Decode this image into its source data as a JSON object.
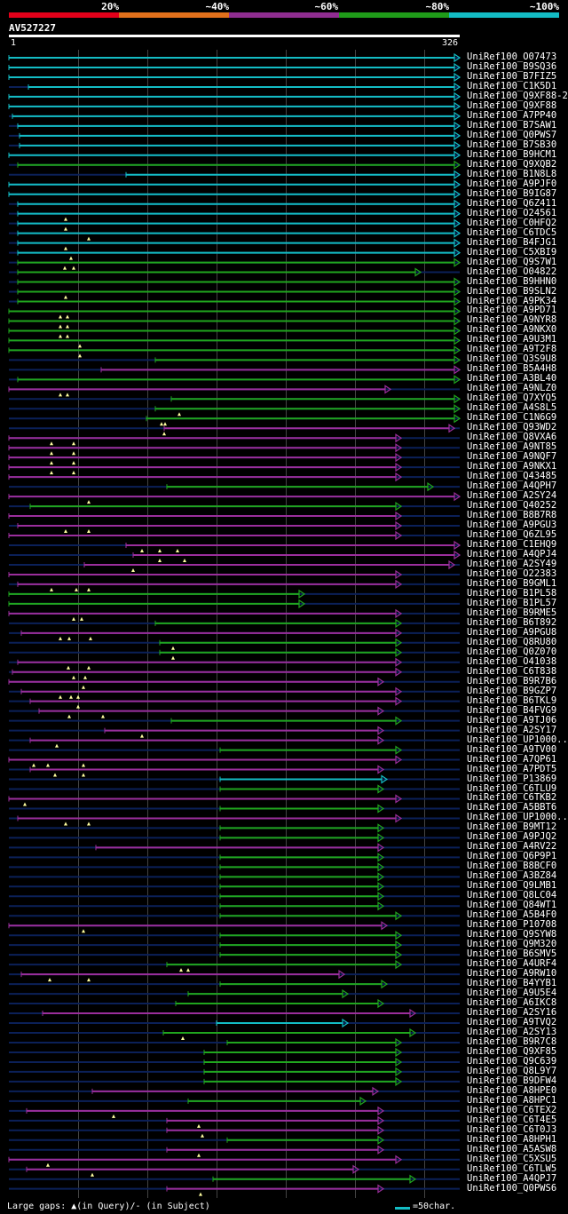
{
  "legend": [
    {
      "label": "20%",
      "color": "#e3001a"
    },
    {
      "label": "~40%",
      "color": "#e1701b"
    },
    {
      "label": "~60%",
      "color": "#8f2d90"
    },
    {
      "label": "~80%",
      "color": "#1f9b19"
    },
    {
      "label": "~100%",
      "color": "#13bcc4"
    }
  ],
  "query": {
    "id": "AV527227",
    "start": "1",
    "end": "326"
  },
  "colors": {
    "cyan": "#13bcc4",
    "green": "#20a61e",
    "magenta": "#9b2e9c",
    "dim": "#0b2058"
  },
  "hits": [
    {
      "id": "UniRef100_O07473",
      "c": "cyan",
      "x1": 10,
      "x2": 518,
      "g": []
    },
    {
      "id": "UniRef100_B9SQ36",
      "c": "cyan",
      "x1": 10,
      "x2": 518,
      "g": []
    },
    {
      "id": "UniRef100_B7FIZ5",
      "c": "cyan",
      "x1": 10,
      "x2": 518,
      "g": []
    },
    {
      "id": "UniRef100_C1K5D1",
      "c": "cyan",
      "x1": 32,
      "x2": 518,
      "g": []
    },
    {
      "id": "UniRef100_Q9XF88-2",
      "c": "cyan",
      "x1": 10,
      "x2": 518,
      "g": []
    },
    {
      "id": "UniRef100_Q9XF88",
      "c": "cyan",
      "x1": 10,
      "x2": 518,
      "g": []
    },
    {
      "id": "UniRef100_A7PP40",
      "c": "cyan",
      "x1": 14,
      "x2": 518,
      "g": []
    },
    {
      "id": "UniRef100_B7SAW1",
      "c": "cyan",
      "x1": 20,
      "x2": 518,
      "g": []
    },
    {
      "id": "UniRef100_Q0PWS7",
      "c": "cyan",
      "x1": 22,
      "x2": 518,
      "g": []
    },
    {
      "id": "UniRef100_B7SB30",
      "c": "cyan",
      "x1": 22,
      "x2": 518,
      "g": []
    },
    {
      "id": "UniRef100_B9HCM1",
      "c": "cyan",
      "x1": 10,
      "x2": 518,
      "g": []
    },
    {
      "id": "UniRef100_Q9XQB2",
      "c": "green",
      "x1": 20,
      "x2": 518,
      "g": []
    },
    {
      "id": "UniRef100_B1N8L8",
      "c": "cyan",
      "x1": 142,
      "x2": 518,
      "g": []
    },
    {
      "id": "UniRef100_A9PJF0",
      "c": "cyan",
      "x1": 10,
      "x2": 518,
      "g": []
    },
    {
      "id": "UniRef100_B9IG87",
      "c": "cyan",
      "x1": 10,
      "x2": 518,
      "g": []
    },
    {
      "id": "UniRef100_Q6Z411",
      "c": "cyan",
      "x1": 20,
      "x2": 518,
      "g": []
    },
    {
      "id": "UniRef100_O24561",
      "c": "cyan",
      "x1": 20,
      "x2": 518,
      "g": [
        74
      ]
    },
    {
      "id": "UniRef100_C0HFQ2",
      "c": "cyan",
      "x1": 20,
      "x2": 518,
      "g": [
        74
      ]
    },
    {
      "id": "UniRef100_C6TDC5",
      "c": "cyan",
      "x1": 20,
      "x2": 518,
      "g": [
        100
      ]
    },
    {
      "id": "UniRef100_B4FJG1",
      "c": "cyan",
      "x1": 20,
      "x2": 518,
      "g": [
        74
      ]
    },
    {
      "id": "UniRef100_C5XBI9",
      "c": "cyan",
      "x1": 20,
      "x2": 518,
      "g": [
        80
      ]
    },
    {
      "id": "UniRef100_Q9S7W1",
      "c": "green",
      "x1": 20,
      "x2": 518,
      "g": [
        73,
        83
      ]
    },
    {
      "id": "UniRef100_O04822",
      "c": "green",
      "x1": 20,
      "x2": 474,
      "g": []
    },
    {
      "id": "UniRef100_B9HHN0",
      "c": "green",
      "x1": 20,
      "x2": 518,
      "g": []
    },
    {
      "id": "UniRef100_B9SLN2",
      "c": "green",
      "x1": 20,
      "x2": 518,
      "g": [
        74
      ]
    },
    {
      "id": "UniRef100_A9PK34",
      "c": "green",
      "x1": 20,
      "x2": 518,
      "g": []
    },
    {
      "id": "UniRef100_A9PD71",
      "c": "green",
      "x1": 10,
      "x2": 518,
      "g": [
        68,
        76
      ]
    },
    {
      "id": "UniRef100_A9NYR8",
      "c": "green",
      "x1": 10,
      "x2": 518,
      "g": [
        68,
        76
      ]
    },
    {
      "id": "UniRef100_A9NKX0",
      "c": "green",
      "x1": 10,
      "x2": 518,
      "g": [
        68,
        76
      ]
    },
    {
      "id": "UniRef100_A9U3M1",
      "c": "green",
      "x1": 10,
      "x2": 518,
      "g": [
        90
      ]
    },
    {
      "id": "UniRef100_A9T2F8",
      "c": "green",
      "x1": 10,
      "x2": 518,
      "g": [
        90
      ]
    },
    {
      "id": "UniRef100_Q3S9U8",
      "c": "green",
      "x1": 175,
      "x2": 518,
      "g": []
    },
    {
      "id": "UniRef100_B5A4H8",
      "c": "magenta",
      "x1": 114,
      "x2": 518,
      "g": []
    },
    {
      "id": "UniRef100_A3BL40",
      "c": "green",
      "x1": 20,
      "x2": 518,
      "g": []
    },
    {
      "id": "UniRef100_A9NLZ0",
      "c": "magenta",
      "x1": 10,
      "x2": 440,
      "g": [
        68,
        76
      ]
    },
    {
      "id": "UniRef100_Q7XYQ5",
      "c": "green",
      "x1": 193,
      "x2": 518,
      "g": []
    },
    {
      "id": "UniRef100_A4S8L5",
      "c": "green",
      "x1": 175,
      "x2": 518,
      "g": [
        202
      ]
    },
    {
      "id": "UniRef100_C1N6G9",
      "c": "green",
      "x1": 165,
      "x2": 518,
      "g": [
        182,
        186
      ]
    },
    {
      "id": "UniRef100_Q93WD2",
      "c": "magenta",
      "x1": 185,
      "x2": 512,
      "g": [
        185
      ]
    },
    {
      "id": "UniRef100_Q8VXA6",
      "c": "magenta",
      "x1": 10,
      "x2": 452,
      "g": [
        58,
        83
      ]
    },
    {
      "id": "UniRef100_A9NT85",
      "c": "magenta",
      "x1": 10,
      "x2": 452,
      "g": [
        58,
        83
      ]
    },
    {
      "id": "UniRef100_A9NQF7",
      "c": "magenta",
      "x1": 10,
      "x2": 452,
      "g": [
        58,
        83
      ]
    },
    {
      "id": "UniRef100_A9NKX1",
      "c": "magenta",
      "x1": 10,
      "x2": 452,
      "g": [
        58,
        83
      ]
    },
    {
      "id": "UniRef100_Q43485",
      "c": "magenta",
      "x1": 10,
      "x2": 452,
      "g": []
    },
    {
      "id": "UniRef100_A4QPH7",
      "c": "green",
      "x1": 188,
      "x2": 488,
      "g": []
    },
    {
      "id": "UniRef100_A2SY24",
      "c": "magenta",
      "x1": 10,
      "x2": 518,
      "g": [
        100
      ]
    },
    {
      "id": "UniRef100_Q40252",
      "c": "green",
      "x1": 34,
      "x2": 452,
      "g": []
    },
    {
      "id": "UniRef100_B8B7R8",
      "c": "magenta",
      "x1": 10,
      "x2": 452,
      "g": []
    },
    {
      "id": "UniRef100_A9PGU3",
      "c": "magenta",
      "x1": 20,
      "x2": 452,
      "g": [
        74,
        100
      ]
    },
    {
      "id": "UniRef100_Q6ZL95",
      "c": "magenta",
      "x1": 10,
      "x2": 452,
      "g": []
    },
    {
      "id": "UniRef100_C1EHQ9",
      "c": "magenta",
      "x1": 142,
      "x2": 518,
      "g": [
        160,
        180,
        200
      ]
    },
    {
      "id": "UniRef100_A4QPJ4",
      "c": "magenta",
      "x1": 150,
      "x2": 518,
      "g": [
        180,
        208
      ]
    },
    {
      "id": "UniRef100_A2SY49",
      "c": "magenta",
      "x1": 95,
      "x2": 512,
      "g": [
        150
      ]
    },
    {
      "id": "UniRef100_O22383",
      "c": "magenta",
      "x1": 10,
      "x2": 452,
      "g": []
    },
    {
      "id": "UniRef100_B9GML1",
      "c": "magenta",
      "x1": 20,
      "x2": 452,
      "g": [
        58,
        86,
        100
      ]
    },
    {
      "id": "UniRef100_B1PL58",
      "c": "green",
      "x1": 10,
      "x2": 343,
      "g": []
    },
    {
      "id": "UniRef100_B1PL57",
      "c": "green",
      "x1": 10,
      "x2": 343,
      "g": []
    },
    {
      "id": "UniRef100_B9RME5",
      "c": "magenta",
      "x1": 10,
      "x2": 452,
      "g": [
        83,
        92
      ]
    },
    {
      "id": "UniRef100_B6T892",
      "c": "green",
      "x1": 175,
      "x2": 452,
      "g": []
    },
    {
      "id": "UniRef100_A9PGU8",
      "c": "magenta",
      "x1": 24,
      "x2": 452,
      "g": [
        68,
        78,
        102
      ]
    },
    {
      "id": "UniRef100_Q8RU80",
      "c": "green",
      "x1": 180,
      "x2": 452,
      "g": [
        195
      ]
    },
    {
      "id": "UniRef100_Q0Z070",
      "c": "green",
      "x1": 180,
      "x2": 452,
      "g": [
        195
      ]
    },
    {
      "id": "UniRef100_O41038",
      "c": "magenta",
      "x1": 20,
      "x2": 452,
      "g": [
        77,
        100
      ]
    },
    {
      "id": "UniRef100_C6T838",
      "c": "magenta",
      "x1": 14,
      "x2": 452,
      "g": [
        83,
        96
      ]
    },
    {
      "id": "UniRef100_B9R7B6",
      "c": "magenta",
      "x1": 10,
      "x2": 432,
      "g": [
        94
      ]
    },
    {
      "id": "UniRef100_B9GZP7",
      "c": "magenta",
      "x1": 24,
      "x2": 452,
      "g": [
        68,
        80,
        88
      ]
    },
    {
      "id": "UniRef100_B6TKL9",
      "c": "magenta",
      "x1": 34,
      "x2": 452,
      "g": [
        88
      ]
    },
    {
      "id": "UniRef100_B4FVG9",
      "c": "magenta",
      "x1": 44,
      "x2": 432,
      "g": [
        78,
        116
      ]
    },
    {
      "id": "UniRef100_A9TJ06",
      "c": "green",
      "x1": 193,
      "x2": 452,
      "g": []
    },
    {
      "id": "UniRef100_A2SY17",
      "c": "magenta",
      "x1": 118,
      "x2": 432,
      "g": [
        160
      ]
    },
    {
      "id": "UniRef100_UP1000..",
      "c": "magenta",
      "x1": 34,
      "x2": 432,
      "g": [
        64
      ]
    },
    {
      "id": "UniRef100_A9TV00",
      "c": "green",
      "x1": 248,
      "x2": 452,
      "g": []
    },
    {
      "id": "UniRef100_A7QP61",
      "c": "magenta",
      "x1": 10,
      "x2": 452,
      "g": [
        38,
        54,
        94
      ]
    },
    {
      "id": "UniRef100_A7PDT5",
      "c": "magenta",
      "x1": 34,
      "x2": 432,
      "g": [
        62,
        94
      ]
    },
    {
      "id": "UniRef100_P13869",
      "c": "cyan",
      "x1": 248,
      "x2": 436,
      "g": []
    },
    {
      "id": "UniRef100_C6TLU9",
      "c": "green",
      "x1": 248,
      "x2": 432,
      "g": []
    },
    {
      "id": "UniRef100_C6TKB2",
      "c": "magenta",
      "x1": 10,
      "x2": 452,
      "g": [
        28
      ]
    },
    {
      "id": "UniRef100_A5BBT6",
      "c": "green",
      "x1": 248,
      "x2": 432,
      "g": []
    },
    {
      "id": "UniRef100_UP1000...",
      "c": "magenta",
      "x1": 20,
      "x2": 452,
      "g": [
        74,
        100
      ]
    },
    {
      "id": "UniRef100_B9MT12",
      "c": "green",
      "x1": 248,
      "x2": 432,
      "g": []
    },
    {
      "id": "UniRef100_A9PJQ2",
      "c": "green",
      "x1": 248,
      "x2": 432,
      "g": []
    },
    {
      "id": "UniRef100_A4RV22",
      "c": "magenta",
      "x1": 108,
      "x2": 432,
      "g": []
    },
    {
      "id": "UniRef100_Q6P9P1",
      "c": "green",
      "x1": 248,
      "x2": 432,
      "g": []
    },
    {
      "id": "UniRef100_B8BCF0",
      "c": "green",
      "x1": 248,
      "x2": 432,
      "g": []
    },
    {
      "id": "UniRef100_A3BZ84",
      "c": "green",
      "x1": 248,
      "x2": 432,
      "g": []
    },
    {
      "id": "UniRef100_Q9LMB1",
      "c": "green",
      "x1": 248,
      "x2": 432,
      "g": []
    },
    {
      "id": "UniRef100_Q8LC04",
      "c": "green",
      "x1": 248,
      "x2": 432,
      "g": []
    },
    {
      "id": "UniRef100_Q84WT1",
      "c": "green",
      "x1": 248,
      "x2": 432,
      "g": []
    },
    {
      "id": "UniRef100_A5B4F0",
      "c": "green",
      "x1": 248,
      "x2": 452,
      "g": []
    },
    {
      "id": "UniRef100_P10708",
      "c": "magenta",
      "x1": 10,
      "x2": 436,
      "g": [
        94
      ]
    },
    {
      "id": "UniRef100_Q9SYW8",
      "c": "green",
      "x1": 248,
      "x2": 452,
      "g": []
    },
    {
      "id": "UniRef100_Q9M320",
      "c": "green",
      "x1": 248,
      "x2": 452,
      "g": []
    },
    {
      "id": "UniRef100_B6SMV5",
      "c": "green",
      "x1": 248,
      "x2": 452,
      "g": []
    },
    {
      "id": "UniRef100_A4URF4",
      "c": "green",
      "x1": 188,
      "x2": 452,
      "g": [
        204,
        212
      ]
    },
    {
      "id": "UniRef100_A9RW10",
      "c": "magenta",
      "x1": 24,
      "x2": 388,
      "g": [
        56,
        100
      ]
    },
    {
      "id": "UniRef100_B4YYB1",
      "c": "green",
      "x1": 248,
      "x2": 436,
      "g": []
    },
    {
      "id": "UniRef100_A9U5E4",
      "c": "green",
      "x1": 212,
      "x2": 392,
      "g": []
    },
    {
      "id": "UniRef100_A6IKC8",
      "c": "green",
      "x1": 198,
      "x2": 432,
      "g": []
    },
    {
      "id": "UniRef100_A2SY16",
      "c": "magenta",
      "x1": 48,
      "x2": 468,
      "g": []
    },
    {
      "id": "UniRef100_A9TVQ2",
      "c": "cyan",
      "x1": 244,
      "x2": 392,
      "g": []
    },
    {
      "id": "UniRef100_A2SY13",
      "c": "green",
      "x1": 184,
      "x2": 468,
      "g": [
        206
      ]
    },
    {
      "id": "UniRef100_B9R7C8",
      "c": "green",
      "x1": 256,
      "x2": 452,
      "g": []
    },
    {
      "id": "UniRef100_Q9XF85",
      "c": "green",
      "x1": 230,
      "x2": 452,
      "g": []
    },
    {
      "id": "UniRef100_Q9C639",
      "c": "green",
      "x1": 230,
      "x2": 452,
      "g": []
    },
    {
      "id": "UniRef100_Q8L9Y7",
      "c": "green",
      "x1": 230,
      "x2": 452,
      "g": []
    },
    {
      "id": "UniRef100_B9DFW4",
      "c": "green",
      "x1": 230,
      "x2": 452,
      "g": []
    },
    {
      "id": "UniRef100_A8HPE0",
      "c": "magenta",
      "x1": 104,
      "x2": 426,
      "g": []
    },
    {
      "id": "UniRef100_A8HPC1",
      "c": "green",
      "x1": 212,
      "x2": 412,
      "g": []
    },
    {
      "id": "UniRef100_C6TEX2",
      "c": "magenta",
      "x1": 30,
      "x2": 432,
      "g": [
        128
      ]
    },
    {
      "id": "UniRef100_C6T4E5",
      "c": "magenta",
      "x1": 188,
      "x2": 432,
      "g": [
        224
      ]
    },
    {
      "id": "UniRef100_C6T0J3",
      "c": "magenta",
      "x1": 188,
      "x2": 432,
      "g": [
        228
      ]
    },
    {
      "id": "UniRef100_A8HPH1",
      "c": "green",
      "x1": 256,
      "x2": 432,
      "g": []
    },
    {
      "id": "UniRef100_A5ASW8",
      "c": "magenta",
      "x1": 188,
      "x2": 432,
      "g": [
        224
      ]
    },
    {
      "id": "UniRef100_C5XSU5",
      "c": "magenta",
      "x1": 10,
      "x2": 452,
      "g": [
        54
      ]
    },
    {
      "id": "UniRef100_C6TLW5",
      "c": "magenta",
      "x1": 30,
      "x2": 404,
      "g": [
        104
      ]
    },
    {
      "id": "UniRef100_A4QPJ7",
      "c": "green",
      "x1": 240,
      "x2": 468,
      "g": []
    },
    {
      "id": "UniRef100_Q0PWS6",
      "c": "magenta",
      "x1": 188,
      "x2": 432,
      "g": [
        226
      ]
    }
  ],
  "footer": {
    "gaps": "Large gaps: ▲(in Query)/- (in Subject)",
    "scale": "=50char."
  }
}
